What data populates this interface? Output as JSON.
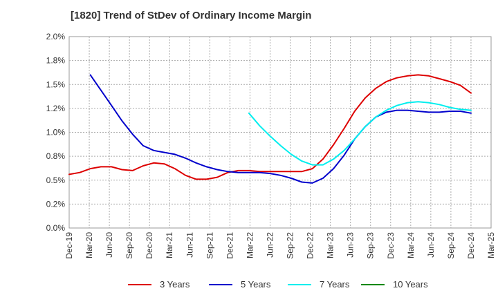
{
  "chart_data": {
    "type": "line",
    "title": "[1820]  Trend of StDev of Ordinary Income Margin",
    "xlabel": "",
    "ylabel": "",
    "x_ticks": [
      "Dec-19",
      "Mar-20",
      "Jun-20",
      "Sep-20",
      "Dec-20",
      "Mar-21",
      "Jun-21",
      "Sep-21",
      "Dec-21",
      "Mar-22",
      "Jun-22",
      "Sep-22",
      "Dec-22",
      "Mar-23",
      "Jun-23",
      "Sep-23",
      "Dec-23",
      "Mar-24",
      "Jun-24",
      "Sep-24",
      "Dec-24",
      "Mar-25"
    ],
    "y_ticks": [
      "0.0%",
      "0.2%",
      "0.5%",
      "0.8%",
      "1.0%",
      "1.2%",
      "1.5%",
      "1.8%",
      "2.0%"
    ],
    "ylim": [
      0,
      2.0
    ],
    "grid": true,
    "legend_position": "bottom",
    "series": [
      {
        "name": "3 Years",
        "color": "#dd0000",
        "values": [
          0.56,
          0.58,
          0.62,
          0.64,
          0.64,
          0.61,
          0.6,
          0.65,
          0.68,
          0.67,
          0.62,
          0.55,
          0.51,
          0.51,
          0.53,
          0.58,
          0.6,
          0.6,
          0.59,
          0.59,
          0.59,
          0.59,
          0.59,
          0.62,
          0.72,
          0.87,
          1.04,
          1.22,
          1.36,
          1.46,
          1.53,
          1.57,
          1.59,
          1.6,
          1.59,
          1.56,
          1.53,
          1.49,
          1.41
        ]
      },
      {
        "name": "5 Years",
        "color": "#0000cc",
        "values": [
          null,
          null,
          1.6,
          1.44,
          1.28,
          1.12,
          0.98,
          0.86,
          0.81,
          0.79,
          0.77,
          0.73,
          0.68,
          0.64,
          0.61,
          0.59,
          0.58,
          0.58,
          0.58,
          0.57,
          0.55,
          0.52,
          0.48,
          0.47,
          0.52,
          0.62,
          0.76,
          0.93,
          1.06,
          1.16,
          1.21,
          1.23,
          1.23,
          1.22,
          1.21,
          1.21,
          1.22,
          1.22,
          1.2
        ]
      },
      {
        "name": "7 Years",
        "color": "#00eeee",
        "values": [
          null,
          null,
          null,
          null,
          null,
          null,
          null,
          null,
          null,
          null,
          null,
          null,
          null,
          null,
          null,
          null,
          null,
          1.2,
          1.07,
          0.96,
          0.86,
          0.77,
          0.7,
          0.66,
          0.66,
          0.72,
          0.81,
          0.93,
          1.06,
          1.16,
          1.23,
          1.28,
          1.31,
          1.32,
          1.31,
          1.29,
          1.26,
          1.24,
          1.23
        ]
      },
      {
        "name": "10 Years",
        "color": "#008800",
        "values": []
      }
    ]
  }
}
